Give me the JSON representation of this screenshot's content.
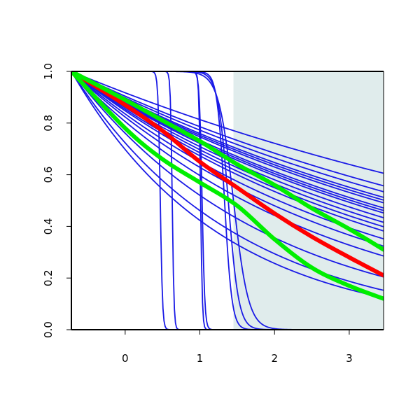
{
  "chart_data": {
    "type": "line",
    "title": "",
    "xlabel": "",
    "ylabel": "",
    "xlim": [
      -0.72,
      3.46
    ],
    "ylim": [
      0.0,
      1.0
    ],
    "x_ticks": [
      0,
      1,
      2,
      3
    ],
    "x_tick_labels": [
      "0",
      "1",
      "2",
      "3"
    ],
    "y_ticks": [
      0.0,
      0.2,
      0.4,
      0.6,
      0.8,
      1.0
    ],
    "y_tick_labels": [
      "0.0",
      "0.2",
      "0.4",
      "0.6",
      "0.8",
      "1.0"
    ],
    "shaded_region": {
      "x_start": 1.45,
      "x_end": 3.46,
      "color": "#e0ecec"
    },
    "grid": false,
    "colors": {
      "blue": "#1a1ae6",
      "red": "#ff0000",
      "green": "#00ee00",
      "axis": "#000000"
    },
    "blue_curves": {
      "exponential_rates": [
        0.12,
        0.14,
        0.15,
        0.16,
        0.165,
        0.17,
        0.18,
        0.185,
        0.19,
        0.2,
        0.21,
        0.22,
        0.23,
        0.25,
        0.27,
        0.3,
        0.38,
        0.45,
        0.5
      ],
      "sharp_drops": [
        {
          "x50": 0.47,
          "width": 0.015
        },
        {
          "x50": 0.63,
          "width": 0.012
        },
        {
          "x50": 1.01,
          "width": 0.012
        },
        {
          "x50": 1.03,
          "width": 0.018
        },
        {
          "x50": 1.33,
          "width": 0.05
        },
        {
          "x50": 1.38,
          "width": 0.07
        },
        {
          "x50": 1.45,
          "width": 0.1
        }
      ]
    },
    "series": [
      {
        "color": "red",
        "x": [
          -0.72,
          0.0,
          0.5,
          1.0,
          1.5,
          2.0,
          2.5,
          3.0,
          3.46
        ],
        "values": [
          1.0,
          0.87,
          0.77,
          0.65,
          0.55,
          0.45,
          0.36,
          0.28,
          0.21
        ]
      },
      {
        "color": "green",
        "x": [
          -0.72,
          0.0,
          0.5,
          1.0,
          1.5,
          2.0,
          2.5,
          3.0,
          3.46
        ],
        "values": [
          1.0,
          0.89,
          0.81,
          0.73,
          0.64,
          0.56,
          0.47,
          0.39,
          0.31
        ]
      },
      {
        "color": "green",
        "x": [
          -0.72,
          0.0,
          0.5,
          1.0,
          1.5,
          2.0,
          2.5,
          3.0,
          3.46
        ],
        "values": [
          1.0,
          0.78,
          0.66,
          0.57,
          0.48,
          0.35,
          0.24,
          0.17,
          0.12
        ]
      }
    ]
  }
}
